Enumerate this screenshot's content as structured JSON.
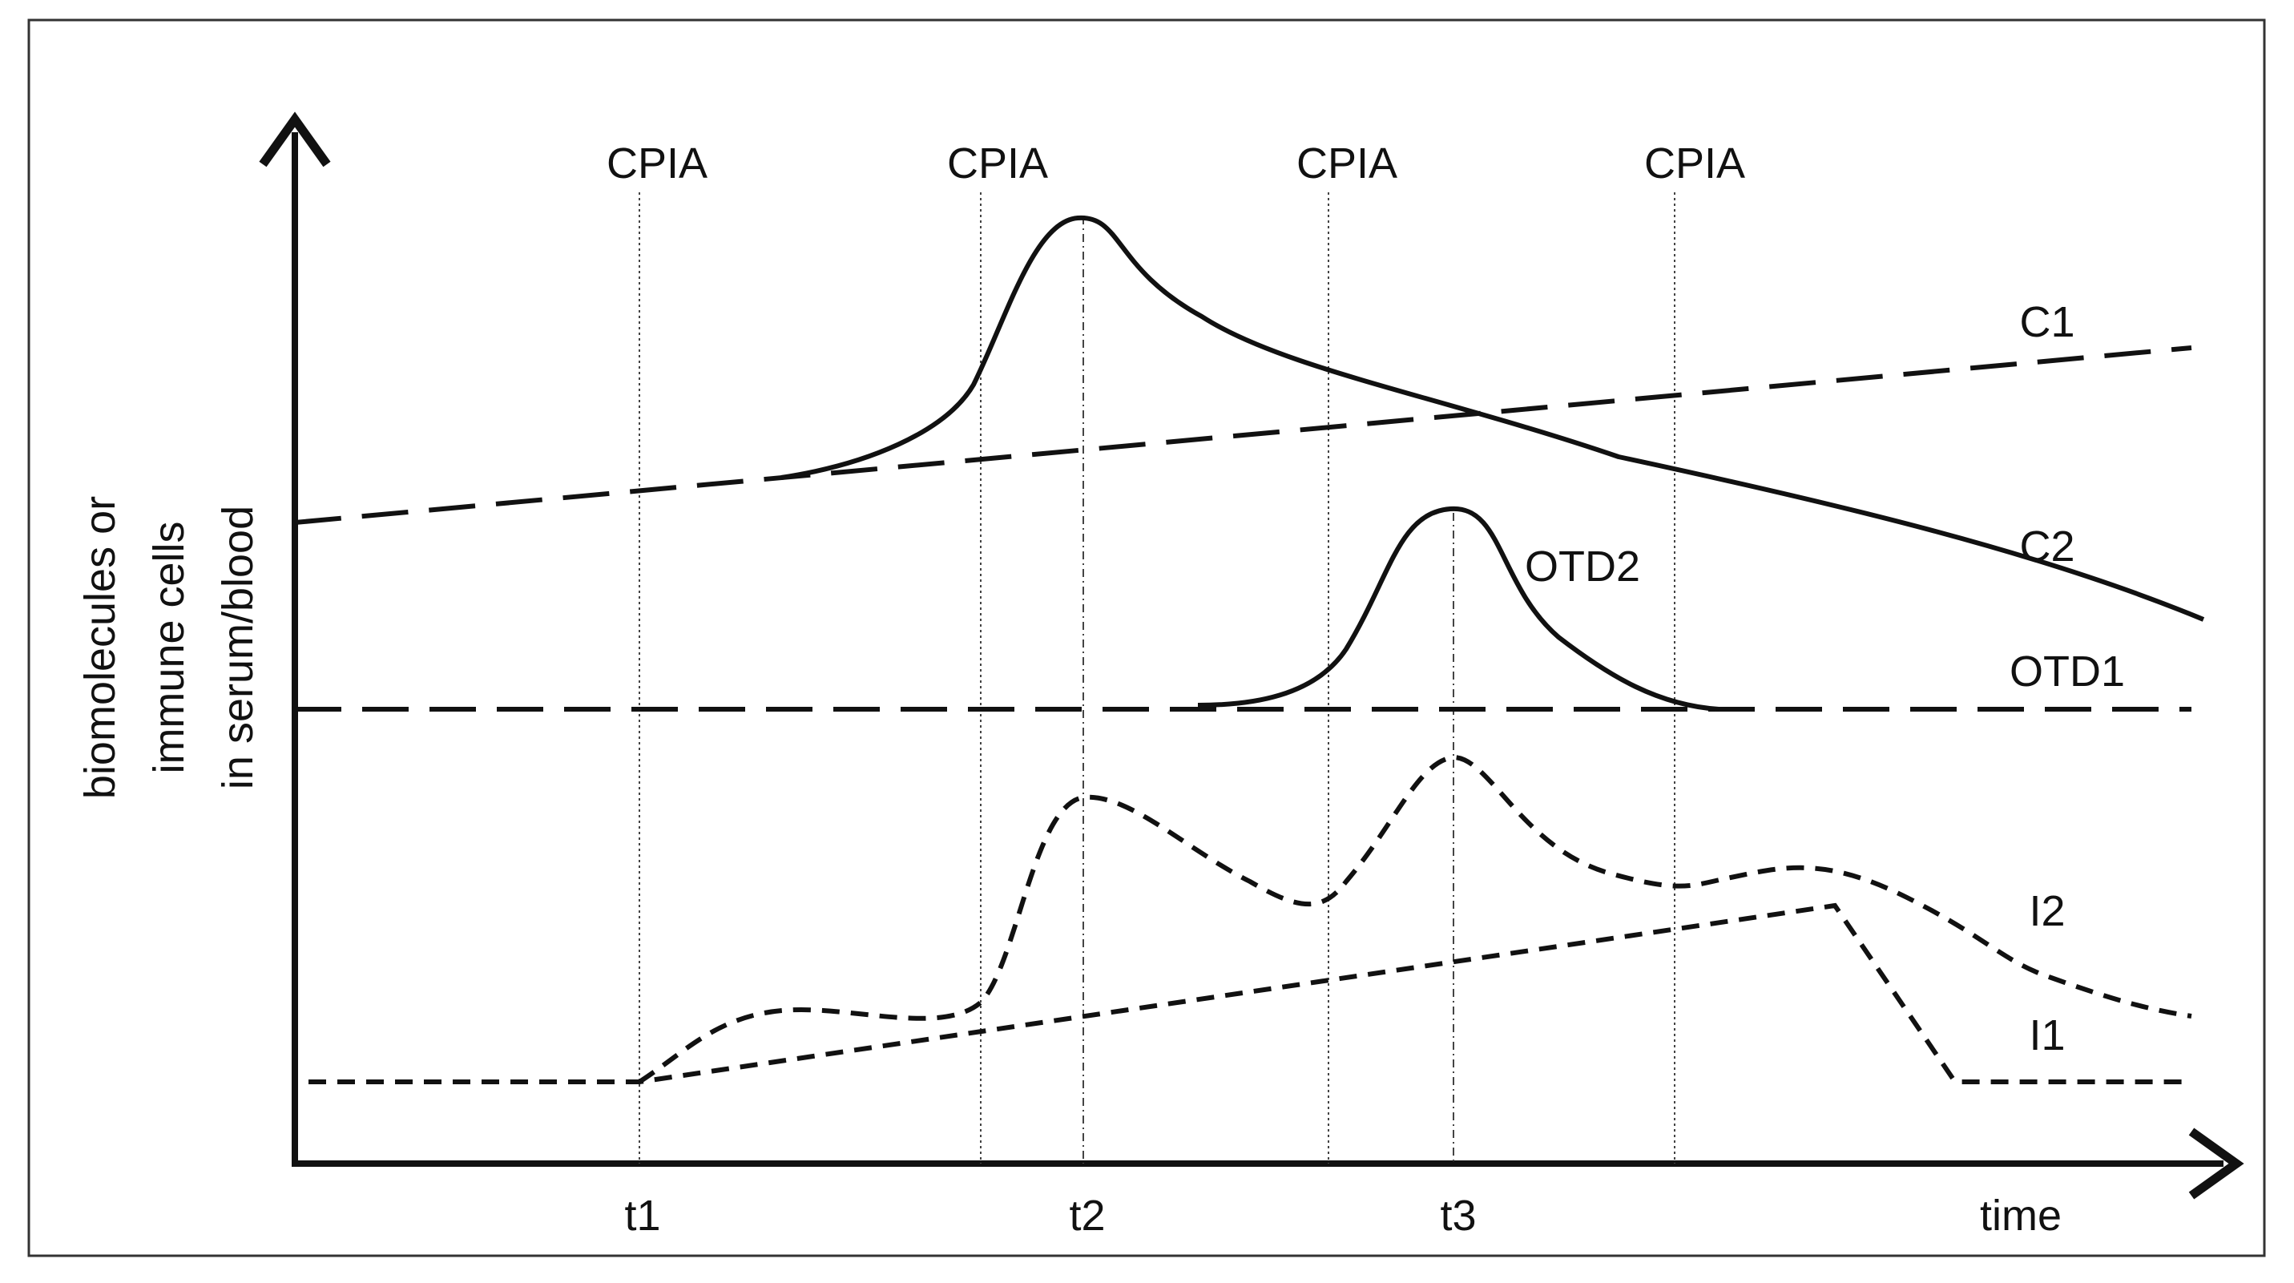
{
  "diagram": {
    "y_axis_label_lines": [
      "biomolecules or",
      "immune cells",
      "in serum/blood"
    ],
    "x_axis_label": "time",
    "event_markers": [
      {
        "label": "CPIA"
      },
      {
        "label": "CPIA"
      },
      {
        "label": "CPIA"
      },
      {
        "label": "CPIA"
      }
    ],
    "time_points": [
      {
        "label": "t1"
      },
      {
        "label": "t2"
      },
      {
        "label": "t3"
      }
    ],
    "curves": [
      {
        "label": "C1",
        "style": "long-dash"
      },
      {
        "label": "C2",
        "style": "solid"
      },
      {
        "label": "OTD1",
        "style": "long-dash"
      },
      {
        "label": "OTD2",
        "style": "solid"
      },
      {
        "label": "I2",
        "style": "short-dash"
      },
      {
        "label": "I1",
        "style": "short-dash"
      }
    ],
    "colors": {
      "ink": "#111111",
      "background": "#ffffff",
      "frame": "#333333"
    }
  }
}
